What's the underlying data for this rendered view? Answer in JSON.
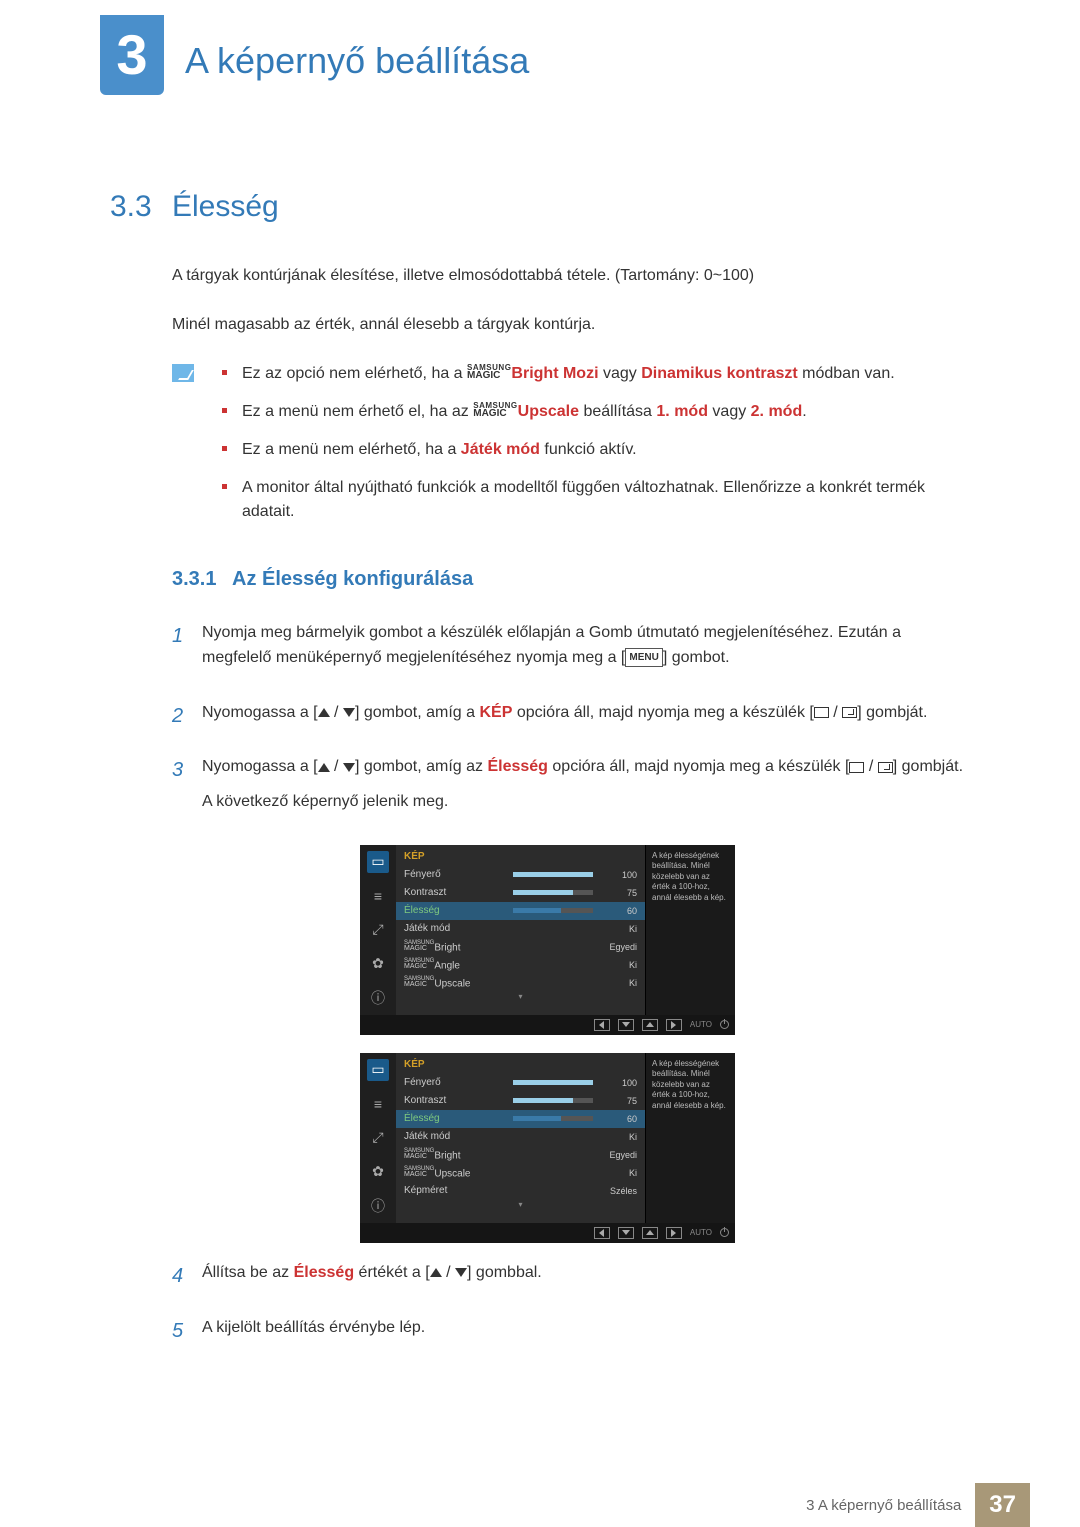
{
  "chapter": {
    "number": "3",
    "title": "A képernyő beállítása"
  },
  "section": {
    "number": "3.3",
    "title": "Élesség"
  },
  "intro1": "A tárgyak kontúrjának élesítése, illetve elmosódottabbá tétele. (Tartomány: 0~100)",
  "intro2": "Minél magasabb az érték, annál élesebb a tárgyak kontúrja.",
  "magic": {
    "samsung": "SAMSUNG",
    "magic": "MAGIC"
  },
  "notes": {
    "n1a": "Ez az opció nem elérhető, ha a ",
    "n1b": "Bright",
    "n1c": " Mozi",
    "n1d": " vagy ",
    "n1e": "Dinamikus kontraszt",
    "n1f": " módban van.",
    "n2a": "Ez a menü nem érhető el, ha az ",
    "n2b": "Upscale",
    "n2c": " beállítása ",
    "n2d": "1. mód",
    "n2e": " vagy ",
    "n2f": "2. mód",
    "n2g": ".",
    "n3a": "Ez a menü nem elérhető, ha a ",
    "n3b": "Játék mód",
    "n3c": " funkció aktív.",
    "n4": "A monitor által nyújtható funkciók a modelltől függően változhatnak. Ellenőrizze a konkrét termék adatait."
  },
  "subsection": {
    "number": "3.3.1",
    "title": "Az Élesség konfigurálása"
  },
  "steps": {
    "s1a": "Nyomja meg bármelyik gombot a készülék előlapján a Gomb útmutató megjelenítéséhez. Ezután a megfelelő menüképernyő megjelenítéséhez nyomja meg a [",
    "s1b": "] gombot.",
    "menu": "MENU",
    "s2a": "Nyomogassa a [",
    "s2b": "] gombot, amíg a ",
    "s2c": "KÉP",
    "s2d": " opcióra áll, majd nyomja meg a készülék [",
    "s2e": "] gombját.",
    "s3a": "Nyomogassa a [",
    "s3b": "] gombot, amíg az ",
    "s3c": "Élesség",
    "s3d": " opcióra áll, majd nyomja meg a készülék [",
    "s3e": "] gombját.",
    "s3f": "A következő képernyő jelenik meg.",
    "s4a": "Állítsa be az ",
    "s4b": "Élesség",
    "s4c": " értékét a [",
    "s4d": "] gombbal.",
    "s5": "A kijelölt beállítás érvénybe lép."
  },
  "osd": {
    "header": "KÉP",
    "tip": "A kép élességének beállítása.\nMinél közelebb van az érték a 100-hoz, annál élesebb a kép.",
    "auto": "AUTO",
    "rows1": [
      {
        "label": "Fényerő",
        "type": "slider",
        "value": 100,
        "fill": 100
      },
      {
        "label": "Kontraszt",
        "type": "slider",
        "value": 75,
        "fill": 75
      },
      {
        "label": "Élesség",
        "type": "slider",
        "value": 60,
        "fill": 60,
        "selected": true
      },
      {
        "label": "Játék mód",
        "type": "text",
        "value": "Ki"
      },
      {
        "label": "Bright",
        "type": "text",
        "value": "Egyedi",
        "magic": true
      },
      {
        "label": "Angle",
        "type": "text",
        "value": "Ki",
        "magic": true
      },
      {
        "label": "Upscale",
        "type": "text",
        "value": "Ki",
        "magic": true
      }
    ],
    "rows2": [
      {
        "label": "Fényerő",
        "type": "slider",
        "value": 100,
        "fill": 100
      },
      {
        "label": "Kontraszt",
        "type": "slider",
        "value": 75,
        "fill": 75
      },
      {
        "label": "Élesség",
        "type": "slider",
        "value": 60,
        "fill": 60,
        "selected": true
      },
      {
        "label": "Játék mód",
        "type": "text",
        "value": "Ki"
      },
      {
        "label": "Bright",
        "type": "text",
        "value": "Egyedi",
        "magic": true
      },
      {
        "label": "Upscale",
        "type": "text",
        "value": "Ki",
        "magic": true
      },
      {
        "label": "Képméret",
        "type": "text",
        "value": "Széles"
      }
    ]
  },
  "footer": {
    "text": "3 A képernyő beállítása",
    "page": "37"
  },
  "colors": {
    "blue": "#337ab7",
    "red": "#c33",
    "tab": "#4a8fcb",
    "footerBox": "#a89878",
    "osdBg": "#2c2c2c",
    "osdHeader": "#d4a028",
    "osdSel": "#2a5a7a"
  }
}
